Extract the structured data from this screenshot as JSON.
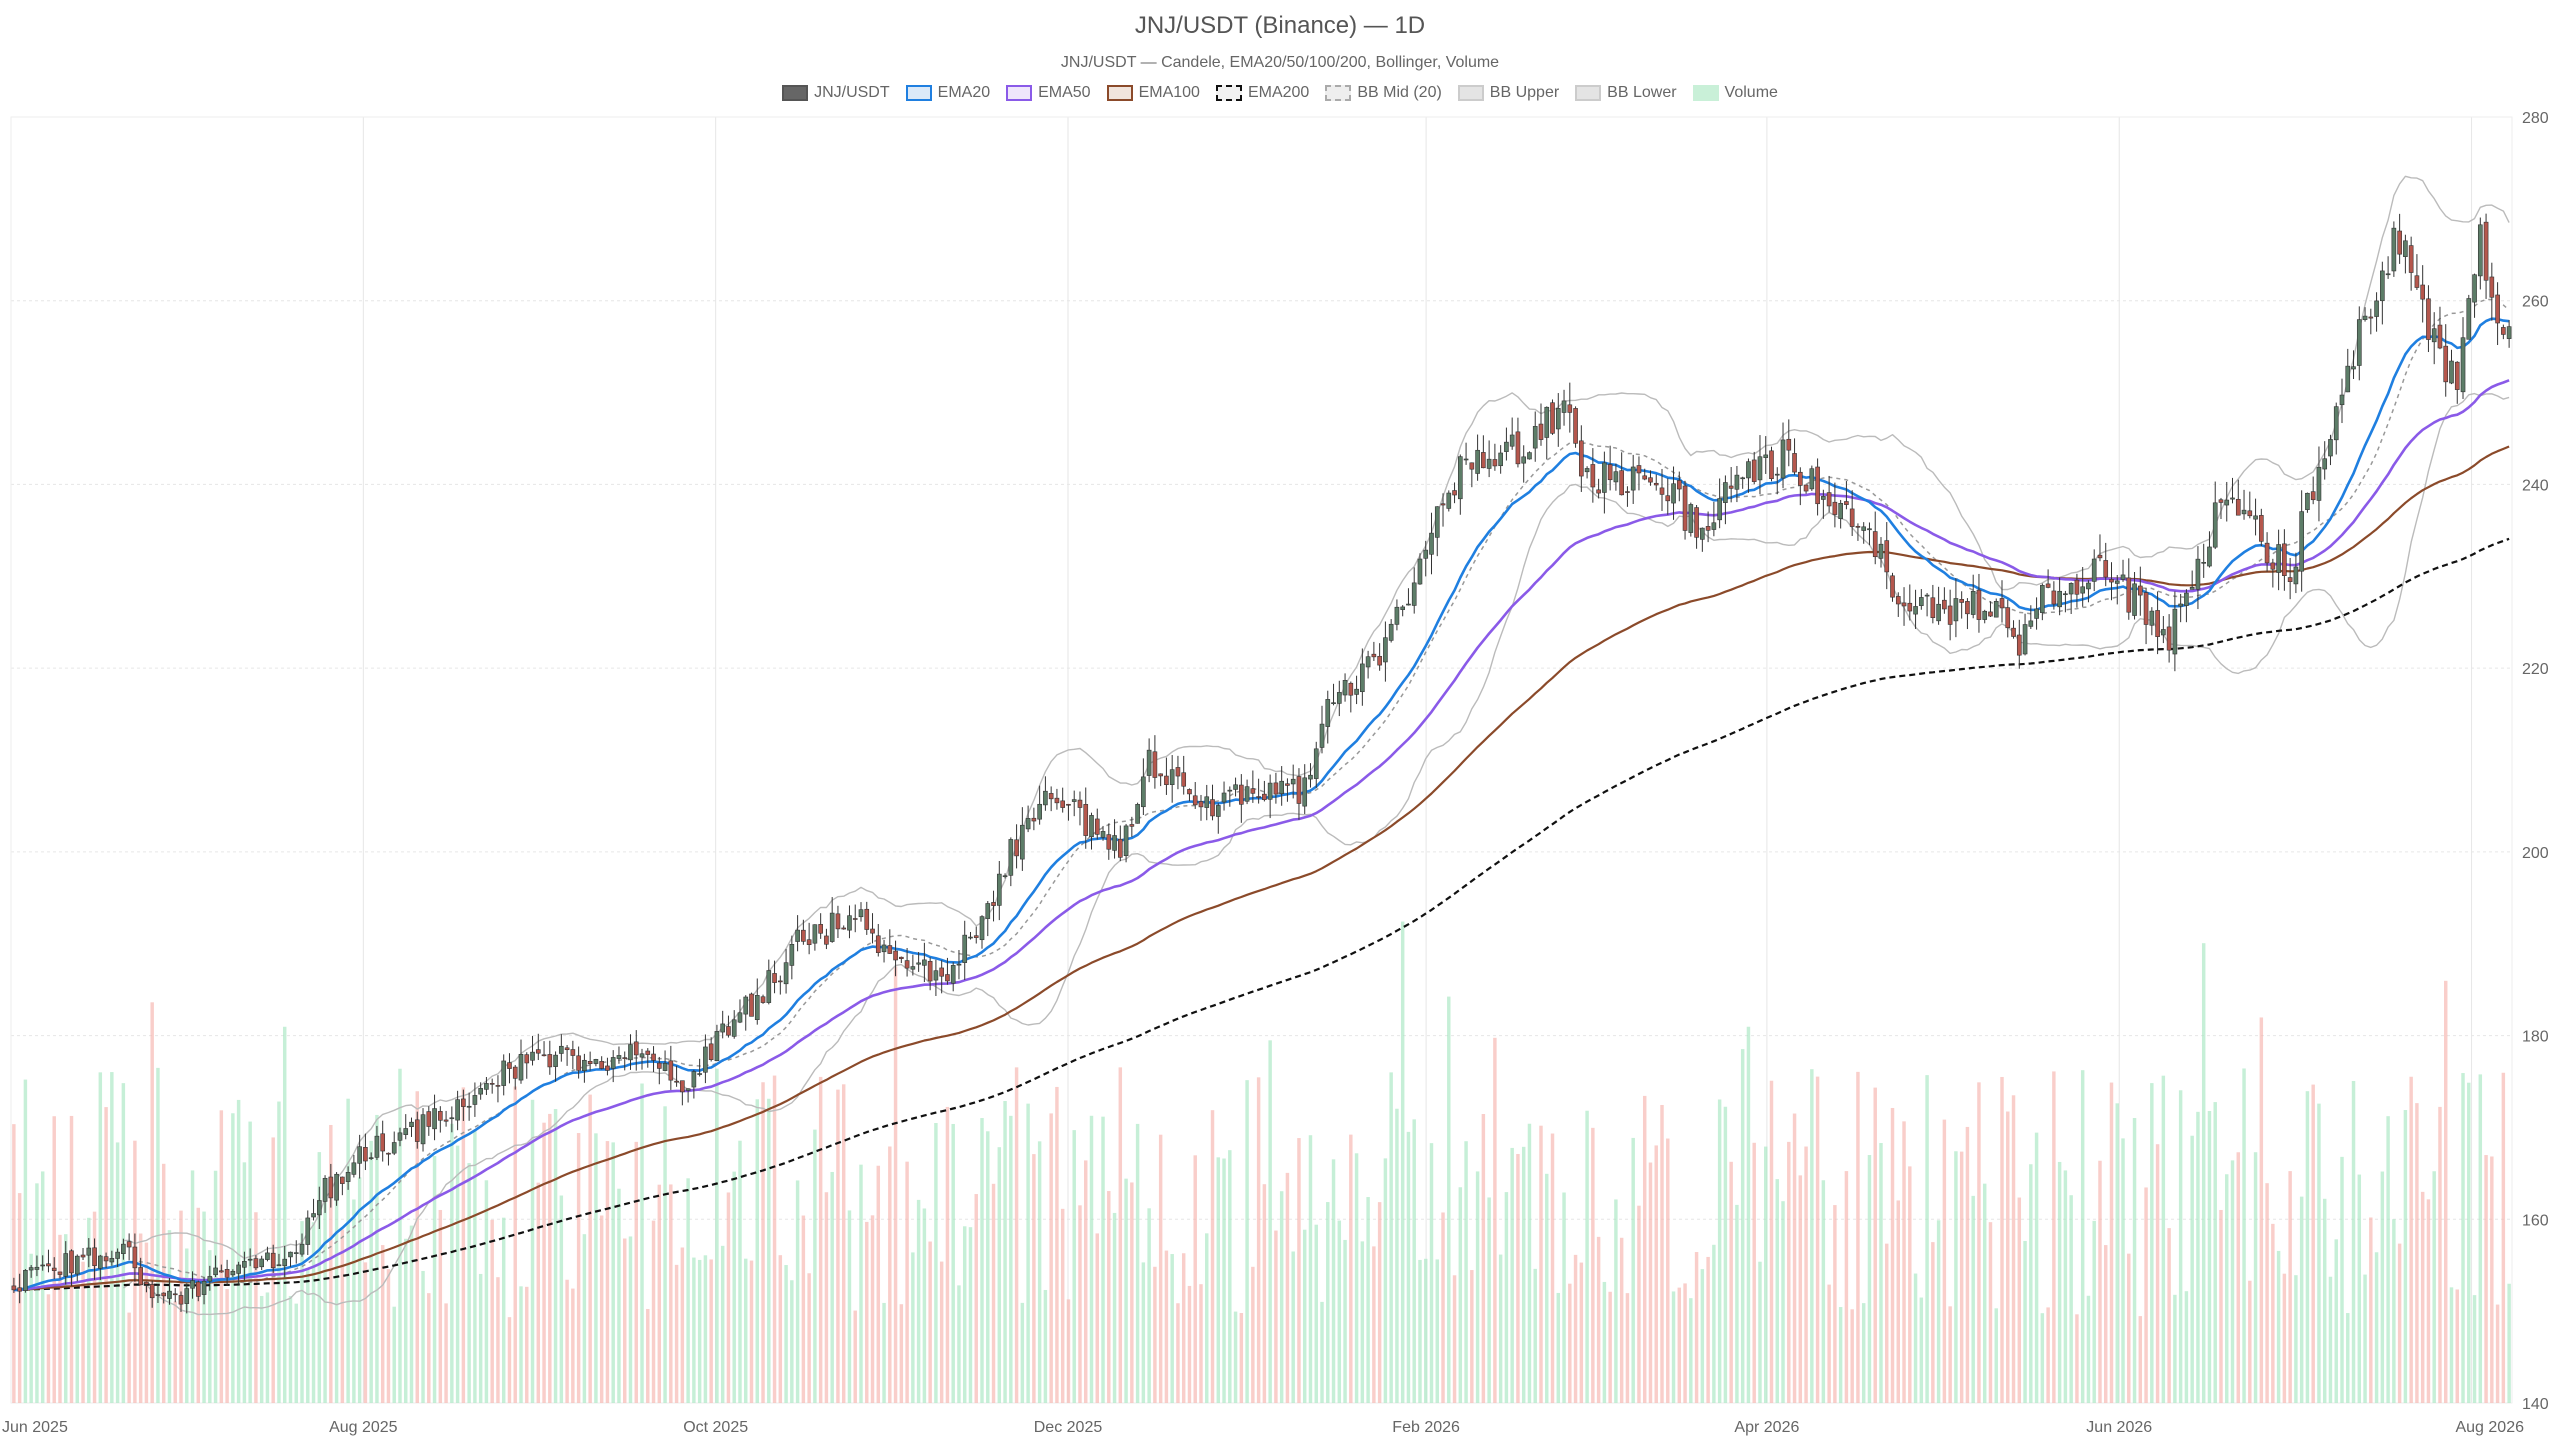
{
  "chart_data": {
    "type": "candlestick",
    "title": "JNJ/USDT (Binance) — 1D",
    "subtitle": "JNJ/USDT — Candele, EMA20/50/100/200, Bollinger, Volume",
    "legend_placement": "top-center",
    "grid": true,
    "x_range": [
      "2025-06-01",
      "2026-08-08"
    ],
    "y_range": [
      140,
      280
    ],
    "y_ticks": [
      140,
      160,
      180,
      200,
      220,
      240,
      260,
      280
    ],
    "x_ticks": [
      {
        "date": "2025-06-01",
        "label": "Jun 2025"
      },
      {
        "date": "2025-08-01",
        "label": "Aug 2025"
      },
      {
        "date": "2025-10-01",
        "label": "Oct 2025"
      },
      {
        "date": "2025-12-01",
        "label": "Dec 2025"
      },
      {
        "date": "2026-02-01",
        "label": "Feb 2026"
      },
      {
        "date": "2026-04-01",
        "label": "Apr 2026"
      },
      {
        "date": "2026-06-01",
        "label": "Jun 2026"
      },
      {
        "date": "2026-08-01",
        "label": "Aug 2026"
      }
    ],
    "price_path": [
      [
        "2025-06-01",
        153
      ],
      [
        "2025-06-10",
        155
      ],
      [
        "2025-06-20",
        157
      ],
      [
        "2025-06-25",
        151
      ],
      [
        "2025-07-01",
        152
      ],
      [
        "2025-07-08",
        154
      ],
      [
        "2025-07-15",
        155
      ],
      [
        "2025-07-20",
        157
      ],
      [
        "2025-07-25",
        163
      ],
      [
        "2025-08-01",
        167
      ],
      [
        "2025-08-08",
        169
      ],
      [
        "2025-08-15",
        172
      ],
      [
        "2025-08-25",
        176
      ],
      [
        "2025-09-01",
        178
      ],
      [
        "2025-09-10",
        177
      ],
      [
        "2025-09-20",
        178
      ],
      [
        "2025-09-25",
        175
      ],
      [
        "2025-10-01",
        179
      ],
      [
        "2025-10-08",
        184
      ],
      [
        "2025-10-15",
        190
      ],
      [
        "2025-10-25",
        193
      ],
      [
        "2025-11-01",
        189
      ],
      [
        "2025-11-10",
        186
      ],
      [
        "2025-11-15",
        192
      ],
      [
        "2025-11-22",
        201
      ],
      [
        "2025-11-28",
        206
      ],
      [
        "2025-12-05",
        203
      ],
      [
        "2025-12-10",
        201
      ],
      [
        "2025-12-15",
        210
      ],
      [
        "2025-12-25",
        205
      ],
      [
        "2026-01-05",
        207
      ],
      [
        "2026-01-10",
        206
      ],
      [
        "2026-01-15",
        216
      ],
      [
        "2026-01-20",
        218
      ],
      [
        "2026-01-25",
        222
      ],
      [
        "2026-02-01",
        232
      ],
      [
        "2026-02-05",
        239
      ],
      [
        "2026-02-10",
        244
      ],
      [
        "2026-02-18",
        244
      ],
      [
        "2026-02-25",
        248
      ],
      [
        "2026-03-01",
        240
      ],
      [
        "2026-03-10",
        241
      ],
      [
        "2026-03-20",
        236
      ],
      [
        "2026-03-28",
        240
      ],
      [
        "2026-04-05",
        244
      ],
      [
        "2026-04-12",
        237
      ],
      [
        "2026-04-20",
        234
      ],
      [
        "2026-04-25",
        226
      ],
      [
        "2026-05-01",
        227
      ],
      [
        "2026-05-10",
        226
      ],
      [
        "2026-05-15",
        223
      ],
      [
        "2026-05-20",
        228
      ],
      [
        "2026-05-28",
        231
      ],
      [
        "2026-06-05",
        227
      ],
      [
        "2026-06-10",
        223
      ],
      [
        "2026-06-15",
        231
      ],
      [
        "2026-06-20",
        240
      ],
      [
        "2026-06-25",
        235
      ],
      [
        "2026-07-01",
        230
      ],
      [
        "2026-07-05",
        240
      ],
      [
        "2026-07-10",
        250
      ],
      [
        "2026-07-15",
        260
      ],
      [
        "2026-07-20",
        267
      ],
      [
        "2026-07-25",
        258
      ],
      [
        "2026-07-30",
        250
      ],
      [
        "2026-08-01",
        262
      ],
      [
        "2026-08-03",
        268
      ],
      [
        "2026-08-05",
        260
      ],
      [
        "2026-08-08",
        257
      ]
    ],
    "volume_range": [
      0,
      1
    ],
    "volume_scale_note": "",
    "series": [
      {
        "name": "JNJ/USDT",
        "kind": "candles",
        "up_color": "#5d7d68",
        "down_color": "#b5574d"
      },
      {
        "name": "EMA20",
        "kind": "line",
        "period": 20,
        "color": "#1f7fe0",
        "width": 2.6,
        "dash": ""
      },
      {
        "name": "EMA50",
        "kind": "line",
        "period": 50,
        "color": "#8a5ae8",
        "width": 2.6,
        "dash": ""
      },
      {
        "name": "EMA100",
        "kind": "line",
        "period": 100,
        "color": "#8b4a2a",
        "width": 2.2,
        "dash": ""
      },
      {
        "name": "EMA200",
        "kind": "line",
        "period": 200,
        "color": "#111111",
        "width": 2.2,
        "dash": "6,4"
      },
      {
        "name": "BB Mid (20)",
        "kind": "line",
        "period": 20,
        "color": "#999999",
        "width": 1.5,
        "dash": "4,4"
      },
      {
        "name": "BB Upper",
        "kind": "line",
        "color": "#bbbbbb",
        "width": 1.4,
        "dash": ""
      },
      {
        "name": "BB Lower",
        "kind": "line",
        "color": "#bbbbbb",
        "width": 1.4,
        "dash": ""
      },
      {
        "name": "Volume",
        "kind": "bars",
        "up_color": "#a8e6c2",
        "down_color": "#f6b3ae"
      }
    ]
  },
  "legend": [
    {
      "label": "JNJ/USDT",
      "fill": "#666666",
      "border": "#555555",
      "dashed": false
    },
    {
      "label": "EMA20",
      "fill": "#dbe9f8",
      "border": "#1f7fe0",
      "dashed": false
    },
    {
      "label": "EMA50",
      "fill": "#efe6fb",
      "border": "#8a5ae8",
      "dashed": false
    },
    {
      "label": "EMA100",
      "fill": "#f1e4dc",
      "border": "#8b4a2a",
      "dashed": false
    },
    {
      "label": "EMA200",
      "fill": "#f2f2f2",
      "border": "#111111",
      "dashed": true
    },
    {
      "label": "BB Mid (20)",
      "fill": "#eeeeee",
      "border": "#aaaaaa",
      "dashed": true
    },
    {
      "label": "BB Upper",
      "fill": "#e4e4e4",
      "border": "#cccccc",
      "dashed": false
    },
    {
      "label": "BB Lower",
      "fill": "#e4e4e4",
      "border": "#cccccc",
      "dashed": false
    },
    {
      "label": "Volume",
      "fill": "#c9f0d8",
      "border": "#c9f0d8",
      "dashed": false
    }
  ]
}
